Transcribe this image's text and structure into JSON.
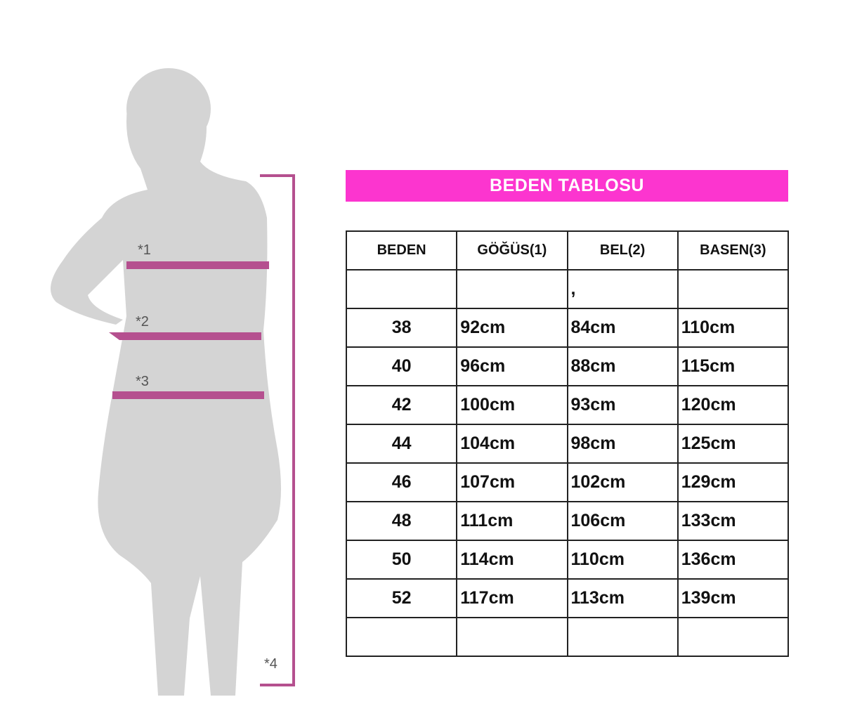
{
  "title": "BEDEN TABLOSU",
  "accent_color": "#fc35cf",
  "measure_line_color": "#b5508f",
  "figure_labels": [
    "*1",
    "*2",
    "*3",
    "*4"
  ],
  "table": {
    "headers": [
      "BEDEN",
      "GÖĞÜS(1)",
      "BEL(2)",
      "BASEN(3)"
    ],
    "rows": [
      [
        "",
        "",
        ",",
        ""
      ],
      [
        "38",
        "92cm",
        "84cm",
        "110cm"
      ],
      [
        "40",
        "96cm",
        "88cm",
        "115cm"
      ],
      [
        "42",
        "100cm",
        "93cm",
        "120cm"
      ],
      [
        "44",
        "104cm",
        "98cm",
        "125cm"
      ],
      [
        "46",
        "107cm",
        "102cm",
        "129cm"
      ],
      [
        "48",
        "111cm",
        "106cm",
        "133cm"
      ],
      [
        "50",
        "114cm",
        "110cm",
        "136cm"
      ],
      [
        "52",
        "117cm",
        "113cm",
        "139cm"
      ],
      [
        "",
        "",
        "",
        ""
      ]
    ]
  }
}
